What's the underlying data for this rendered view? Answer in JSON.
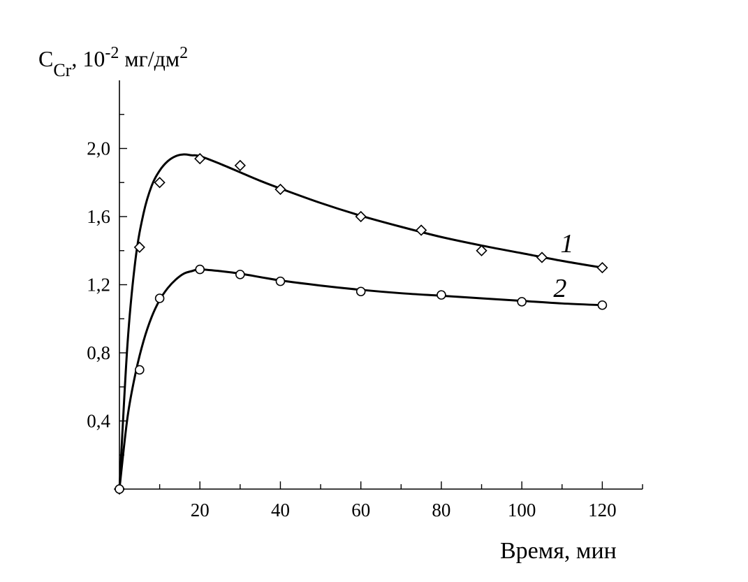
{
  "chart_data": {
    "type": "line",
    "ylabel": {
      "symbol": "C",
      "subscript": "Cr",
      "sep": ", ",
      "unit_prefix": "10",
      "exponent": "-2",
      "unit": " мг/дм",
      "unit_exponent": "2"
    },
    "xlabel": "Время, мин",
    "xlim": [
      0,
      130
    ],
    "ylim": [
      0,
      2.4
    ],
    "x_ticks": [
      20,
      40,
      60,
      80,
      100,
      120
    ],
    "x_tick_labels": [
      "20",
      "40",
      "60",
      "80",
      "100",
      "120"
    ],
    "y_ticks": [
      0.4,
      0.8,
      1.2,
      1.6,
      2.0
    ],
    "y_tick_labels": [
      "0,4",
      "0,8",
      "1,2",
      "1,6",
      "2,0"
    ],
    "grid": false,
    "series": [
      {
        "name": "1",
        "marker": "diamond",
        "points": [
          [
            0,
            0
          ],
          [
            5,
            1.42
          ],
          [
            10,
            1.8
          ],
          [
            20,
            1.94
          ],
          [
            30,
            1.9
          ],
          [
            40,
            1.76
          ],
          [
            60,
            1.6
          ],
          [
            75,
            1.52
          ],
          [
            90,
            1.4
          ],
          [
            105,
            1.36
          ],
          [
            120,
            1.3
          ]
        ],
        "curve": [
          [
            0,
            0
          ],
          [
            2,
            0.85
          ],
          [
            4,
            1.35
          ],
          [
            6,
            1.62
          ],
          [
            8,
            1.78
          ],
          [
            10,
            1.87
          ],
          [
            12,
            1.925
          ],
          [
            14,
            1.955
          ],
          [
            16,
            1.965
          ],
          [
            18,
            1.96
          ],
          [
            20,
            1.955
          ],
          [
            25,
            1.91
          ],
          [
            30,
            1.86
          ],
          [
            35,
            1.81
          ],
          [
            40,
            1.765
          ],
          [
            50,
            1.68
          ],
          [
            60,
            1.605
          ],
          [
            70,
            1.54
          ],
          [
            80,
            1.48
          ],
          [
            90,
            1.43
          ],
          [
            100,
            1.385
          ],
          [
            110,
            1.34
          ],
          [
            120,
            1.3
          ]
        ]
      },
      {
        "name": "2",
        "marker": "circle",
        "points": [
          [
            0,
            0
          ],
          [
            5,
            0.7
          ],
          [
            10,
            1.12
          ],
          [
            20,
            1.29
          ],
          [
            30,
            1.26
          ],
          [
            40,
            1.22
          ],
          [
            60,
            1.16
          ],
          [
            80,
            1.14
          ],
          [
            100,
            1.1
          ],
          [
            120,
            1.08
          ]
        ],
        "curve": [
          [
            0,
            0
          ],
          [
            2,
            0.42
          ],
          [
            4,
            0.68
          ],
          [
            6,
            0.87
          ],
          [
            8,
            1.01
          ],
          [
            10,
            1.11
          ],
          [
            12,
            1.18
          ],
          [
            14,
            1.23
          ],
          [
            16,
            1.265
          ],
          [
            18,
            1.28
          ],
          [
            20,
            1.29
          ],
          [
            25,
            1.28
          ],
          [
            30,
            1.265
          ],
          [
            40,
            1.225
          ],
          [
            50,
            1.195
          ],
          [
            60,
            1.17
          ],
          [
            70,
            1.15
          ],
          [
            80,
            1.135
          ],
          [
            90,
            1.12
          ],
          [
            100,
            1.105
          ],
          [
            110,
            1.09
          ],
          [
            120,
            1.08
          ]
        ]
      }
    ]
  }
}
